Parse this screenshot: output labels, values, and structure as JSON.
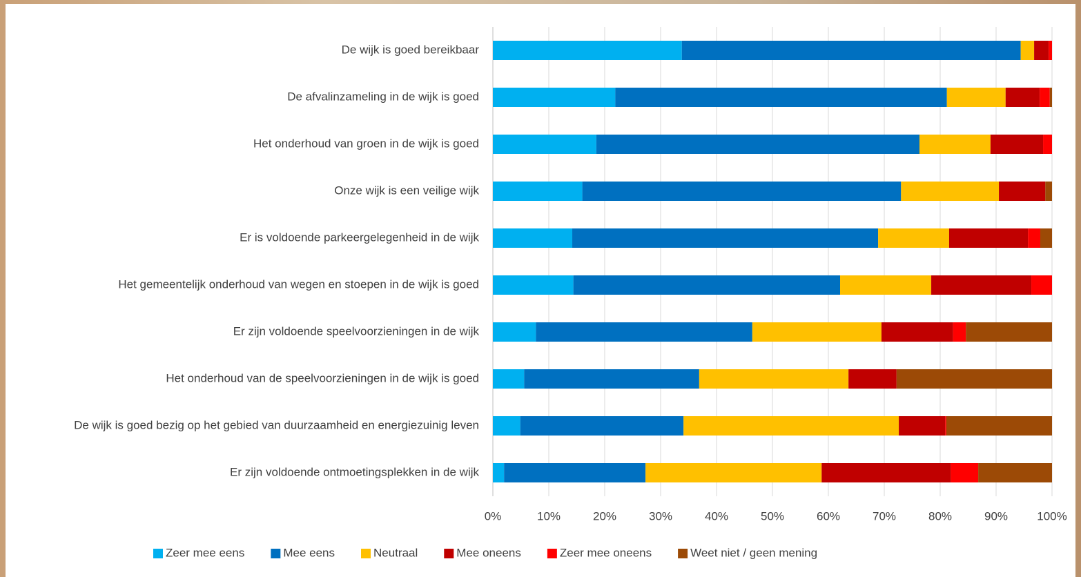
{
  "chart_data": {
    "type": "bar",
    "orientation": "horizontal",
    "stacked": true,
    "grid": true,
    "legend_position": "bottom",
    "categories": [
      "De wijk is goed bereikbaar",
      "De afvalinzameling in de wijk is goed",
      "Het onderhoud van groen in de wijk is goed",
      "Onze wijk is een veilige wijk",
      "Er is voldoende parkeergelegenheid in de wijk",
      "Het gemeentelijk onderhoud van wegen en stoepen in de wijk is goed",
      "Er zijn voldoende speelvoorzieningen in de wijk",
      "Het onderhoud van de speelvoorzieningen in de wijk is goed",
      "De wijk is goed bezig op het gebied van duurzaamheid en energiezuinig leven",
      "Er zijn voldoende ontmoetingsplekken in de wijk"
    ],
    "series": [
      {
        "name": "Zeer mee eens",
        "color": "#00b0f0",
        "values": [
          33.8,
          21.9,
          18.5,
          16.0,
          14.2,
          14.4,
          7.7,
          5.6,
          4.9,
          2.0
        ]
      },
      {
        "name": "Mee eens",
        "color": "#0070c0",
        "values": [
          60.6,
          59.3,
          57.8,
          57.0,
          54.7,
          47.7,
          38.7,
          31.3,
          29.2,
          25.3
        ]
      },
      {
        "name": "Neutraal",
        "color": "#ffc000",
        "values": [
          2.4,
          10.5,
          12.7,
          17.5,
          12.7,
          16.3,
          23.1,
          26.7,
          38.5,
          31.5
        ]
      },
      {
        "name": "Mee oneens",
        "color": "#c00000",
        "values": [
          2.6,
          6.1,
          9.4,
          8.3,
          14.1,
          17.9,
          12.8,
          8.6,
          8.3,
          23.1
        ]
      },
      {
        "name": "Zeer mee oneens",
        "color": "#ff0000",
        "values": [
          0.6,
          1.8,
          1.6,
          0,
          2.2,
          3.7,
          2.3,
          0,
          0.2,
          4.9
        ]
      },
      {
        "name": "Weet niet / geen mening",
        "color": "#9c4a06",
        "values": [
          0,
          0.4,
          0,
          1.2,
          2.1,
          0,
          15.4,
          27.8,
          18.9,
          13.2
        ]
      }
    ],
    "xlim": [
      0,
      100
    ],
    "xticks": [
      {
        "value": 0,
        "label": "0%"
      },
      {
        "value": 10,
        "label": "10%"
      },
      {
        "value": 20,
        "label": "20%"
      },
      {
        "value": 30,
        "label": "30%"
      },
      {
        "value": 40,
        "label": "40%"
      },
      {
        "value": 50,
        "label": "50%"
      },
      {
        "value": 60,
        "label": "60%"
      },
      {
        "value": 70,
        "label": "70%"
      },
      {
        "value": 80,
        "label": "80%"
      },
      {
        "value": 90,
        "label": "90%"
      },
      {
        "value": 100,
        "label": "100%"
      }
    ]
  }
}
